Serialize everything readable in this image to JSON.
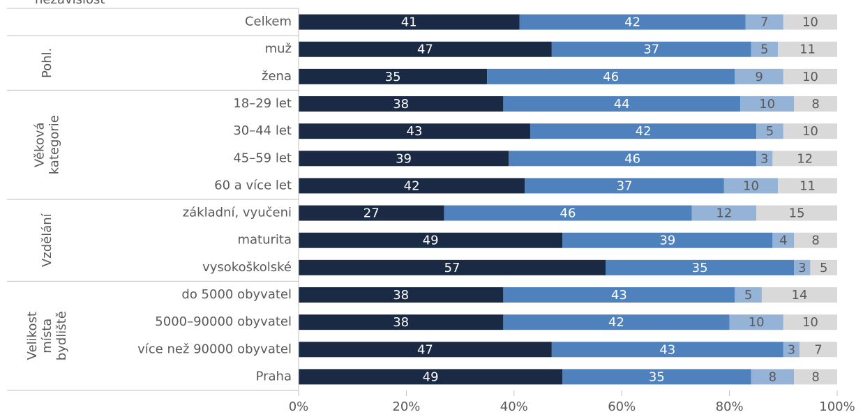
{
  "chart_data": {
    "type": "stacked_barh",
    "title": "nezávislost",
    "categories": [
      "Celkem",
      "muž",
      "žena",
      "18–29 let",
      "30–44 let",
      "45–59 let",
      "60 a více let",
      "základní, vyučeni",
      "maturita",
      "vysokoškolské",
      "do 5000 obyvatel",
      "5000–90000 obyvatel",
      "více než 90000 obyvatel",
      "Praha"
    ],
    "groups": [
      [
        "Pohl."
      ],
      [
        "Věková",
        "kategorie"
      ],
      [
        "Vzdělání"
      ],
      [
        "Velikost",
        "místa",
        "bydliště"
      ]
    ],
    "series": [
      {
        "color": "#1b2a44",
        "values": [
          41,
          47,
          35,
          38,
          43,
          39,
          42,
          27,
          49,
          57,
          38,
          38,
          47,
          49
        ]
      },
      {
        "color": "#4f81bd",
        "values": [
          42,
          37,
          46,
          44,
          42,
          46,
          37,
          46,
          39,
          35,
          43,
          42,
          43,
          35
        ]
      },
      {
        "color": "#95b3d7",
        "values": [
          7,
          5,
          9,
          10,
          5,
          3,
          10,
          12,
          4,
          3,
          5,
          10,
          3,
          8
        ]
      },
      {
        "color": "#d9d9d9",
        "values": [
          10,
          11,
          10,
          8,
          10,
          12,
          11,
          15,
          8,
          5,
          14,
          10,
          7,
          8
        ]
      }
    ],
    "xlim": [
      0,
      100
    ],
    "xticks": [
      {
        "value": 0,
        "label": "0%"
      },
      {
        "value": 20,
        "label": "20%"
      },
      {
        "value": 40,
        "label": "40%"
      },
      {
        "value": 60,
        "label": "60%"
      },
      {
        "value": 80,
        "label": "80%"
      },
      {
        "value": 100,
        "label": "100%"
      }
    ]
  }
}
